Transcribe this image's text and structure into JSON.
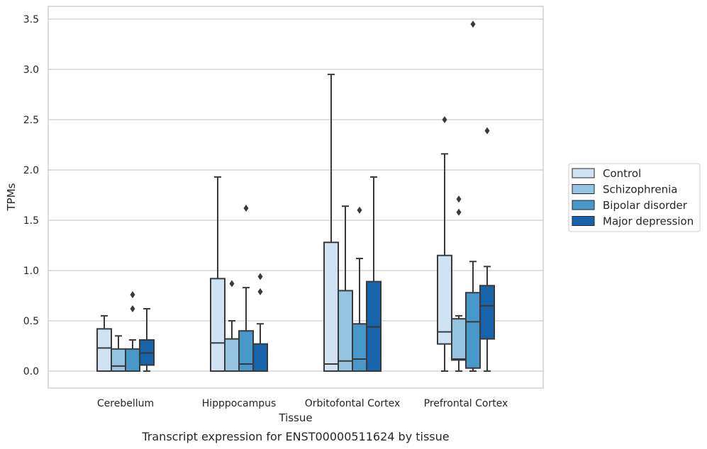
{
  "chart_data": {
    "type": "box",
    "title": "",
    "caption": "Transcript expression for ENST00000511624 by tissue",
    "xlabel": "Tissue",
    "ylabel": "TPMs",
    "ylim": [
      -0.17,
      3.63
    ],
    "yticks": [
      0.0,
      0.5,
      1.0,
      1.5,
      2.0,
      2.5,
      3.0,
      3.5
    ],
    "ytick_labels": [
      "0.0",
      "0.5",
      "1.0",
      "1.5",
      "2.0",
      "2.5",
      "3.0",
      "3.5"
    ],
    "grid": true,
    "legend_position": "right",
    "categories": [
      "Cerebellum",
      "Hipppocampus",
      "Orbitofontal Cortex",
      "Prefrontal Cortex"
    ],
    "series": [
      {
        "name": "Control",
        "color": "#d0e1f2",
        "boxes": [
          {
            "whislo": 0.0,
            "q1": 0.0,
            "med": 0.23,
            "q3": 0.42,
            "whishi": 0.55,
            "fliers": []
          },
          {
            "whislo": 0.0,
            "q1": 0.0,
            "med": 0.28,
            "q3": 0.92,
            "whishi": 1.93,
            "fliers": []
          },
          {
            "whislo": 0.0,
            "q1": 0.0,
            "med": 0.07,
            "q3": 1.28,
            "whishi": 2.95,
            "fliers": []
          },
          {
            "whislo": 0.0,
            "q1": 0.27,
            "med": 0.39,
            "q3": 1.15,
            "whishi": 2.16,
            "fliers": [
              2.5
            ]
          }
        ]
      },
      {
        "name": "Schizophrenia",
        "color": "#94c4df",
        "boxes": [
          {
            "whislo": 0.0,
            "q1": 0.0,
            "med": 0.05,
            "q3": 0.22,
            "whishi": 0.35,
            "fliers": []
          },
          {
            "whislo": 0.0,
            "q1": 0.0,
            "med": 0.0,
            "q3": 0.32,
            "whishi": 0.5,
            "fliers": [
              0.87
            ]
          },
          {
            "whislo": 0.0,
            "q1": 0.0,
            "med": 0.1,
            "q3": 0.8,
            "whishi": 1.64,
            "fliers": []
          },
          {
            "whislo": 0.0,
            "q1": 0.11,
            "med": 0.12,
            "q3": 0.52,
            "whishi": 0.55,
            "fliers": [
              1.58,
              1.71
            ]
          }
        ]
      },
      {
        "name": "Bipolar disorder",
        "color": "#4a98c9",
        "boxes": [
          {
            "whislo": 0.0,
            "q1": 0.0,
            "med": 0.0,
            "q3": 0.22,
            "whishi": 0.31,
            "fliers": [
              0.62,
              0.76
            ]
          },
          {
            "whislo": 0.0,
            "q1": 0.0,
            "med": 0.07,
            "q3": 0.4,
            "whishi": 0.83,
            "fliers": [
              1.62
            ]
          },
          {
            "whislo": 0.0,
            "q1": 0.0,
            "med": 0.12,
            "q3": 0.47,
            "whishi": 1.12,
            "fliers": [
              1.6
            ]
          },
          {
            "whislo": 0.0,
            "q1": 0.03,
            "med": 0.49,
            "q3": 0.78,
            "whishi": 1.09,
            "fliers": [
              3.45
            ]
          }
        ]
      },
      {
        "name": "Major depression",
        "color": "#1764ab",
        "boxes": [
          {
            "whislo": 0.0,
            "q1": 0.06,
            "med": 0.18,
            "q3": 0.31,
            "whishi": 0.62,
            "fliers": []
          },
          {
            "whislo": 0.0,
            "q1": 0.0,
            "med": 0.0,
            "q3": 0.27,
            "whishi": 0.47,
            "fliers": [
              0.79,
              0.94
            ]
          },
          {
            "whislo": 0.0,
            "q1": 0.0,
            "med": 0.44,
            "q3": 0.89,
            "whishi": 1.93,
            "fliers": []
          },
          {
            "whislo": 0.0,
            "q1": 0.32,
            "med": 0.65,
            "q3": 0.85,
            "whishi": 1.04,
            "fliers": [
              2.39
            ]
          }
        ]
      }
    ]
  }
}
